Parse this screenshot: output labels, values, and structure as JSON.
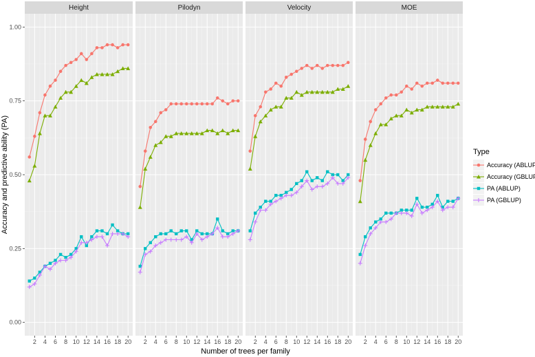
{
  "chart_data": {
    "type": "line",
    "facets": [
      "Height",
      "Pilodyn",
      "Velocity",
      "MOE"
    ],
    "xlabel": "Number of trees per family",
    "ylabel": "Accuracy and predictive ability (PA)",
    "x": [
      1,
      2,
      3,
      4,
      5,
      6,
      7,
      8,
      9,
      10,
      11,
      12,
      13,
      14,
      15,
      16,
      17,
      18,
      19,
      20
    ],
    "xticks": [
      2,
      4,
      6,
      8,
      10,
      12,
      14,
      16,
      18,
      20
    ],
    "xlim": [
      0.1,
      20.9
    ],
    "ylim": [
      -0.045,
      1.045
    ],
    "yticks": [
      0.0,
      0.25,
      0.5,
      0.75,
      1.0
    ],
    "ytick_labels": [
      "0.00",
      "0.25",
      "0.50",
      "0.75",
      "1.00"
    ],
    "grid": true,
    "legend": {
      "title": "Type",
      "position": "right",
      "entries": [
        "Accuracy (ABLUP)",
        "Accuracy (GBLUP)",
        "PA (ABLUP)",
        "PA (GBLUP)"
      ]
    },
    "series": [
      {
        "name": "Accuracy (ABLUP)",
        "color": "#F8766D",
        "marker": "circle",
        "values": {
          "Height": [
            0.56,
            0.63,
            0.71,
            0.77,
            0.8,
            0.82,
            0.85,
            0.87,
            0.88,
            0.89,
            0.91,
            0.89,
            0.91,
            0.93,
            0.93,
            0.94,
            0.94,
            0.93,
            0.94,
            0.94
          ],
          "Pilodyn": [
            0.46,
            0.58,
            0.66,
            0.68,
            0.71,
            0.72,
            0.74,
            0.74,
            0.74,
            0.74,
            0.74,
            0.74,
            0.74,
            0.74,
            0.74,
            0.76,
            0.75,
            0.74,
            0.75,
            0.75
          ],
          "Velocity": [
            0.58,
            0.7,
            0.73,
            0.78,
            0.79,
            0.81,
            0.8,
            0.83,
            0.84,
            0.85,
            0.86,
            0.87,
            0.86,
            0.87,
            0.86,
            0.87,
            0.87,
            0.87,
            0.87,
            0.88
          ],
          "MOE": [
            0.48,
            0.62,
            0.68,
            0.72,
            0.74,
            0.76,
            0.77,
            0.77,
            0.78,
            0.8,
            0.79,
            0.81,
            0.8,
            0.81,
            0.81,
            0.82,
            0.81,
            0.81,
            0.81,
            0.81
          ]
        }
      },
      {
        "name": "Accuracy (GBLUP)",
        "color": "#7CAE00",
        "marker": "triangle",
        "values": {
          "Height": [
            0.48,
            0.53,
            0.64,
            0.7,
            0.7,
            0.73,
            0.76,
            0.78,
            0.78,
            0.8,
            0.82,
            0.81,
            0.83,
            0.84,
            0.84,
            0.84,
            0.84,
            0.85,
            0.86,
            0.86
          ],
          "Pilodyn": [
            0.39,
            0.52,
            0.56,
            0.6,
            0.61,
            0.63,
            0.63,
            0.64,
            0.64,
            0.64,
            0.64,
            0.64,
            0.64,
            0.65,
            0.65,
            0.64,
            0.65,
            0.64,
            0.65,
            0.65
          ],
          "Velocity": [
            0.52,
            0.63,
            0.68,
            0.7,
            0.72,
            0.73,
            0.73,
            0.76,
            0.76,
            0.78,
            0.77,
            0.78,
            0.78,
            0.78,
            0.78,
            0.78,
            0.78,
            0.79,
            0.79,
            0.8
          ],
          "MOE": [
            0.41,
            0.55,
            0.6,
            0.64,
            0.67,
            0.67,
            0.69,
            0.7,
            0.7,
            0.72,
            0.71,
            0.72,
            0.72,
            0.73,
            0.73,
            0.73,
            0.73,
            0.73,
            0.73,
            0.74
          ]
        }
      },
      {
        "name": "PA (ABLUP)",
        "color": "#00BFC4",
        "marker": "square",
        "values": {
          "Height": [
            0.14,
            0.15,
            0.17,
            0.19,
            0.2,
            0.21,
            0.23,
            0.22,
            0.23,
            0.25,
            0.29,
            0.26,
            0.29,
            0.31,
            0.31,
            0.3,
            0.33,
            0.31,
            0.3,
            0.3
          ],
          "Pilodyn": [
            0.19,
            0.25,
            0.27,
            0.29,
            0.3,
            0.3,
            0.31,
            0.3,
            0.31,
            0.31,
            0.28,
            0.31,
            0.3,
            0.3,
            0.3,
            0.35,
            0.31,
            0.3,
            0.31,
            0.31
          ],
          "Velocity": [
            0.31,
            0.37,
            0.39,
            0.41,
            0.41,
            0.43,
            0.43,
            0.44,
            0.45,
            0.47,
            0.48,
            0.51,
            0.48,
            0.49,
            0.48,
            0.51,
            0.5,
            0.5,
            0.48,
            0.5
          ],
          "MOE": [
            0.23,
            0.29,
            0.32,
            0.34,
            0.35,
            0.37,
            0.37,
            0.37,
            0.38,
            0.38,
            0.38,
            0.42,
            0.39,
            0.39,
            0.4,
            0.43,
            0.39,
            0.41,
            0.41,
            0.42
          ]
        }
      },
      {
        "name": "PA (GBLUP)",
        "color": "#C77CFF",
        "marker": "cross",
        "values": {
          "Height": [
            0.12,
            0.13,
            0.16,
            0.19,
            0.18,
            0.2,
            0.21,
            0.21,
            0.22,
            0.24,
            0.27,
            0.27,
            0.28,
            0.29,
            0.29,
            0.26,
            0.3,
            0.3,
            0.3,
            0.29
          ],
          "Pilodyn": [
            0.17,
            0.23,
            0.24,
            0.26,
            0.27,
            0.28,
            0.28,
            0.28,
            0.28,
            0.29,
            0.27,
            0.3,
            0.28,
            0.29,
            0.3,
            0.32,
            0.29,
            0.29,
            0.3,
            0.31
          ],
          "Velocity": [
            0.28,
            0.34,
            0.38,
            0.38,
            0.4,
            0.41,
            0.42,
            0.43,
            0.43,
            0.44,
            0.46,
            0.48,
            0.45,
            0.46,
            0.46,
            0.47,
            0.49,
            0.47,
            0.47,
            0.49
          ],
          "MOE": [
            0.2,
            0.26,
            0.3,
            0.32,
            0.34,
            0.34,
            0.35,
            0.37,
            0.37,
            0.37,
            0.36,
            0.4,
            0.37,
            0.38,
            0.39,
            0.41,
            0.38,
            0.39,
            0.39,
            0.42
          ]
        }
      }
    ]
  }
}
